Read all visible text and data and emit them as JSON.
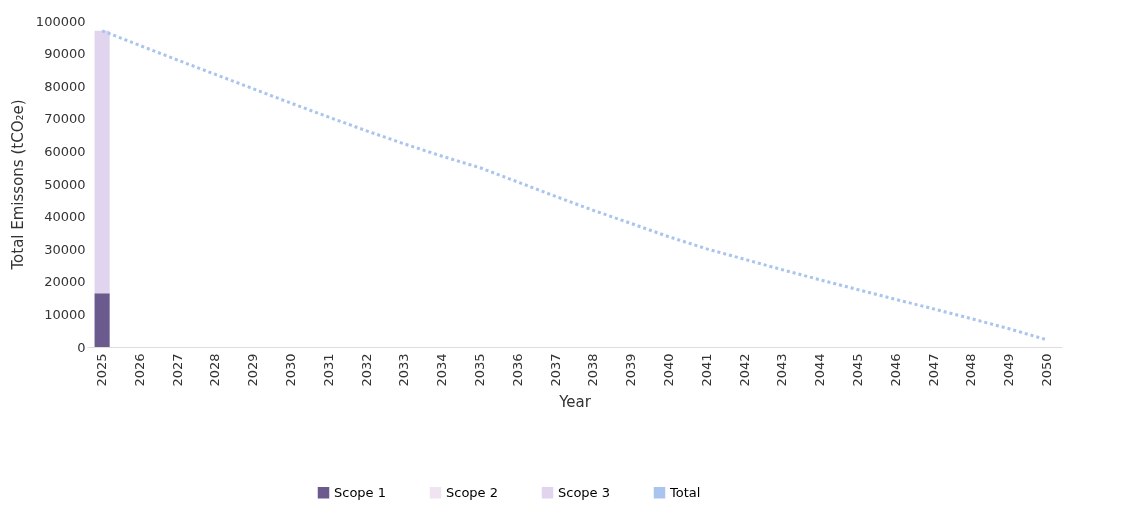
{
  "chart_data": {
    "type": "bar",
    "xlabel": "Year",
    "ylabel": "Total Emissons (tCO₂e)",
    "categories": [
      "2025",
      "2026",
      "2027",
      "2028",
      "2029",
      "2030",
      "2031",
      "2032",
      "2033",
      "2034",
      "2035",
      "2036",
      "2037",
      "2038",
      "2039",
      "2040",
      "2041",
      "2042",
      "2043",
      "2044",
      "2045",
      "2046",
      "2047",
      "2048",
      "2049",
      "2050"
    ],
    "stacked": true,
    "ylim": [
      0,
      100000
    ],
    "yticks": [
      0,
      10000,
      20000,
      30000,
      40000,
      50000,
      60000,
      70000,
      80000,
      90000,
      100000
    ],
    "legend": "bottom",
    "series": [
      {
        "name": "Scope 1",
        "color": "#6b5a8e",
        "values": [
          16500,
          null,
          null,
          null,
          null,
          null,
          null,
          null,
          null,
          null,
          null,
          null,
          null,
          null,
          null,
          null,
          null,
          null,
          null,
          null,
          null,
          null,
          null,
          null,
          null,
          null
        ]
      },
      {
        "name": "Scope 2",
        "color": "#f0e4f0",
        "values": [
          null,
          null,
          null,
          null,
          null,
          null,
          null,
          null,
          null,
          null,
          null,
          null,
          null,
          null,
          null,
          null,
          null,
          null,
          null,
          null,
          null,
          null,
          null,
          null,
          null,
          null
        ]
      },
      {
        "name": "Scope 3",
        "color": "#e0d4ee",
        "values": [
          80500,
          null,
          null,
          null,
          null,
          null,
          null,
          null,
          null,
          null,
          null,
          null,
          null,
          null,
          null,
          null,
          null,
          null,
          null,
          null,
          null,
          null,
          null,
          null,
          null,
          null
        ]
      },
      {
        "name": "Total",
        "type": "line",
        "line_style": "dotted",
        "color": "#a9c4ee",
        "values": [
          97000,
          92500,
          88000,
          83600,
          79200,
          74800,
          70500,
          66300,
          62300,
          58500,
          55000,
          50600,
          46200,
          41900,
          37900,
          33800,
          30100,
          26900,
          23700,
          20600,
          17600,
          14600,
          11700,
          8700,
          5600,
          2200
        ]
      }
    ]
  }
}
